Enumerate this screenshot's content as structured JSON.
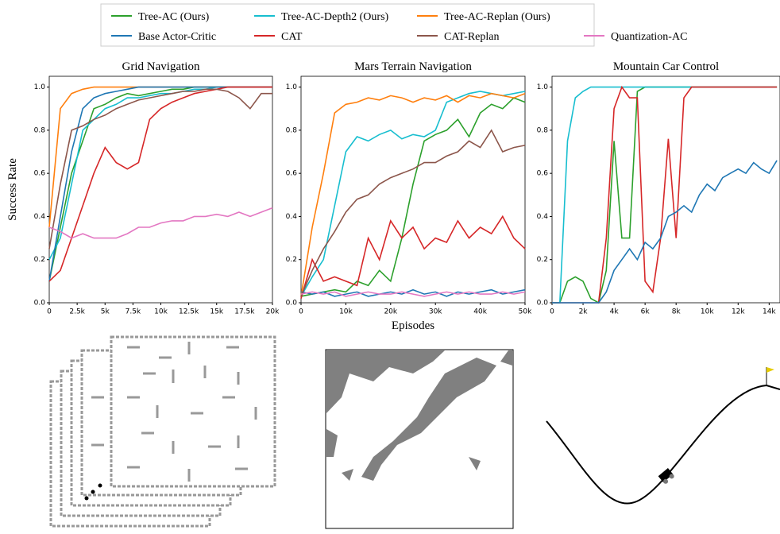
{
  "chart_data": [
    {
      "type": "line",
      "title": "Grid Navigation",
      "ylabel": "Success Rate",
      "xlim": [
        0,
        20000
      ],
      "ylim": [
        0,
        1.05
      ],
      "xticks": [
        0,
        {
          "value": 2500,
          "label": "2.5k"
        },
        {
          "value": 5000,
          "label": "5k"
        },
        {
          "value": 7500,
          "label": "7.5k"
        },
        {
          "value": 10000,
          "label": "10k"
        },
        {
          "value": 12500,
          "label": "12.5k"
        },
        {
          "value": 15000,
          "label": "15k"
        },
        {
          "value": 17500,
          "label": "17.5k"
        },
        {
          "value": 20000,
          "label": "20k"
        }
      ],
      "yticks": [
        {
          "value": 0,
          "label": "0.0"
        },
        {
          "value": 0.2,
          "label": "0.2"
        },
        {
          "value": 0.4,
          "label": "0.4"
        },
        {
          "value": 0.6,
          "label": "0.6"
        },
        {
          "value": 0.8,
          "label": "0.8"
        },
        {
          "value": 1,
          "label": "1.0"
        }
      ],
      "x": [
        0,
        1000,
        2000,
        3000,
        4000,
        5000,
        6000,
        7000,
        8000,
        9000,
        10000,
        11000,
        12000,
        13000,
        14000,
        15000,
        16000,
        17000,
        18000,
        19000,
        20000
      ],
      "series": [
        {
          "name": "Tree-AC (Ours)",
          "color": "#2ca02c",
          "values": [
            0.1,
            0.35,
            0.6,
            0.75,
            0.9,
            0.92,
            0.95,
            0.97,
            0.96,
            0.97,
            0.98,
            0.99,
            0.99,
            1,
            1,
            1,
            1,
            1,
            1,
            1,
            1
          ]
        },
        {
          "name": "Tree-AC-Depth2 (Ours)",
          "color": "#17becf",
          "values": [
            0.2,
            0.3,
            0.55,
            0.8,
            0.85,
            0.9,
            0.92,
            0.95,
            0.95,
            0.96,
            0.97,
            0.97,
            0.98,
            0.99,
            0.99,
            1,
            1,
            1,
            1,
            1,
            1
          ]
        },
        {
          "name": "Tree-AC-Replan (Ours)",
          "color": "#ff7f0e",
          "values": [
            0.35,
            0.9,
            0.97,
            0.99,
            1,
            1,
            1,
            1,
            1,
            1,
            1,
            1,
            1,
            1,
            1,
            1,
            1,
            1,
            1,
            1,
            1
          ]
        },
        {
          "name": "Base Actor-Critic",
          "color": "#1f77b4",
          "values": [
            0.1,
            0.4,
            0.7,
            0.9,
            0.95,
            0.97,
            0.98,
            0.99,
            1,
            1,
            1,
            1,
            1,
            1,
            1,
            1,
            1,
            1,
            1,
            1,
            1
          ]
        },
        {
          "name": "CAT",
          "color": "#d62728",
          "values": [
            0.1,
            0.15,
            0.3,
            0.45,
            0.6,
            0.72,
            0.65,
            0.62,
            0.65,
            0.85,
            0.9,
            0.93,
            0.95,
            0.97,
            0.98,
            0.99,
            1,
            1,
            1,
            1,
            1
          ]
        },
        {
          "name": "CAT-Replan",
          "color": "#8c564b",
          "values": [
            0.25,
            0.55,
            0.8,
            0.82,
            0.85,
            0.87,
            0.9,
            0.92,
            0.94,
            0.95,
            0.96,
            0.97,
            0.98,
            0.98,
            0.99,
            0.99,
            0.98,
            0.95,
            0.9,
            0.97,
            0.97
          ]
        },
        {
          "name": "Quantization-AC",
          "color": "#e377c2",
          "values": [
            0.35,
            0.33,
            0.3,
            0.32,
            0.3,
            0.3,
            0.3,
            0.32,
            0.35,
            0.35,
            0.37,
            0.38,
            0.38,
            0.4,
            0.4,
            0.41,
            0.4,
            0.42,
            0.4,
            0.42,
            0.44
          ]
        }
      ]
    },
    {
      "type": "line",
      "title": "Mars Terrain Navigation",
      "xlabel": "Episodes",
      "xlim": [
        0,
        50000
      ],
      "ylim": [
        0,
        1.05
      ],
      "xticks": [
        0,
        {
          "value": 10000,
          "label": "10k"
        },
        {
          "value": 20000,
          "label": "20k"
        },
        {
          "value": 30000,
          "label": "30k"
        },
        {
          "value": 40000,
          "label": "40k"
        },
        {
          "value": 50000,
          "label": "50k"
        }
      ],
      "yticks": [
        {
          "value": 0,
          "label": "0.0"
        },
        {
          "value": 0.2,
          "label": "0.2"
        },
        {
          "value": 0.4,
          "label": "0.4"
        },
        {
          "value": 0.6,
          "label": "0.6"
        },
        {
          "value": 0.8,
          "label": "0.8"
        },
        {
          "value": 1,
          "label": "1.0"
        }
      ],
      "x": [
        0,
        2500,
        5000,
        7500,
        10000,
        12500,
        15000,
        17500,
        20000,
        22500,
        25000,
        27500,
        30000,
        32500,
        35000,
        37500,
        40000,
        42500,
        45000,
        47500,
        50000
      ],
      "series": [
        {
          "name": "Tree-AC (Ours)",
          "color": "#2ca02c",
          "values": [
            0.03,
            0.04,
            0.05,
            0.06,
            0.05,
            0.1,
            0.08,
            0.15,
            0.1,
            0.3,
            0.55,
            0.75,
            0.78,
            0.8,
            0.85,
            0.77,
            0.88,
            0.92,
            0.9,
            0.95,
            0.93
          ]
        },
        {
          "name": "Tree-AC-Depth2 (Ours)",
          "color": "#17becf",
          "values": [
            0.03,
            0.12,
            0.2,
            0.45,
            0.7,
            0.77,
            0.75,
            0.78,
            0.8,
            0.76,
            0.78,
            0.77,
            0.8,
            0.93,
            0.95,
            0.97,
            0.98,
            0.97,
            0.96,
            0.97,
            0.98
          ]
        },
        {
          "name": "Tree-AC-Replan (Ours)",
          "color": "#ff7f0e",
          "values": [
            0.03,
            0.35,
            0.6,
            0.88,
            0.92,
            0.93,
            0.95,
            0.94,
            0.96,
            0.95,
            0.93,
            0.95,
            0.94,
            0.96,
            0.93,
            0.96,
            0.95,
            0.97,
            0.96,
            0.95,
            0.97
          ]
        },
        {
          "name": "Base Actor-Critic",
          "color": "#1f77b4",
          "values": [
            0.05,
            0.04,
            0.05,
            0.03,
            0.04,
            0.05,
            0.03,
            0.04,
            0.05,
            0.04,
            0.06,
            0.04,
            0.05,
            0.03,
            0.05,
            0.04,
            0.05,
            0.06,
            0.04,
            0.05,
            0.06
          ]
        },
        {
          "name": "CAT",
          "color": "#d62728",
          "values": [
            0.02,
            0.2,
            0.1,
            0.12,
            0.1,
            0.08,
            0.3,
            0.2,
            0.38,
            0.3,
            0.35,
            0.25,
            0.3,
            0.28,
            0.38,
            0.3,
            0.35,
            0.32,
            0.4,
            0.3,
            0.25
          ]
        },
        {
          "name": "CAT-Replan",
          "color": "#8c564b",
          "values": [
            0.03,
            0.15,
            0.25,
            0.33,
            0.42,
            0.48,
            0.5,
            0.55,
            0.58,
            0.6,
            0.62,
            0.65,
            0.65,
            0.68,
            0.7,
            0.75,
            0.72,
            0.8,
            0.7,
            0.72,
            0.73
          ]
        },
        {
          "name": "Quantization-AC",
          "color": "#e377c2",
          "values": [
            0.04,
            0.05,
            0.04,
            0.05,
            0.03,
            0.04,
            0.05,
            0.04,
            0.04,
            0.05,
            0.04,
            0.03,
            0.04,
            0.05,
            0.04,
            0.05,
            0.04,
            0.04,
            0.05,
            0.04,
            0.05
          ]
        }
      ]
    },
    {
      "type": "line",
      "title": "Mountain Car Control",
      "xlim": [
        0,
        14700
      ],
      "ylim": [
        0,
        1.05
      ],
      "xticks": [
        0,
        {
          "value": 2000,
          "label": "2k"
        },
        {
          "value": 4000,
          "label": "4k"
        },
        {
          "value": 6000,
          "label": "6k"
        },
        {
          "value": 8000,
          "label": "8k"
        },
        {
          "value": 10000,
          "label": "10k"
        },
        {
          "value": 12000,
          "label": "12k"
        },
        {
          "value": 14000,
          "label": "14k"
        }
      ],
      "yticks": [
        {
          "value": 0,
          "label": "0.0"
        },
        {
          "value": 0.2,
          "label": "0.2"
        },
        {
          "value": 0.4,
          "label": "0.4"
        },
        {
          "value": 0.6,
          "label": "0.6"
        },
        {
          "value": 0.8,
          "label": "0.8"
        },
        {
          "value": 1,
          "label": "1.0"
        }
      ],
      "x": [
        0,
        500,
        1000,
        1500,
        2000,
        2500,
        3000,
        3500,
        4000,
        4500,
        5000,
        5500,
        6000,
        6500,
        7000,
        7500,
        8000,
        8500,
        9000,
        9500,
        10000,
        10500,
        11000,
        11500,
        12000,
        12500,
        13000,
        13500,
        14000,
        14500
      ],
      "series": [
        {
          "name": "Tree-AC (Ours)",
          "color": "#2ca02c",
          "values": [
            0,
            0,
            0.1,
            0.12,
            0.1,
            0.02,
            0,
            0.15,
            0.75,
            0.3,
            0.3,
            0.98,
            1,
            1,
            1,
            1,
            1,
            1,
            1,
            1,
            1,
            1,
            1,
            1,
            1,
            1,
            1,
            1,
            1,
            1
          ]
        },
        {
          "name": "Tree-AC-Depth2 (Ours)",
          "color": "#17becf",
          "values": [
            0,
            0,
            0.75,
            0.95,
            0.98,
            1,
            1,
            1,
            1,
            1,
            1,
            1,
            1,
            1,
            1,
            1,
            1,
            1,
            1,
            1,
            1,
            1,
            1,
            1,
            1,
            1,
            1,
            1,
            1,
            1
          ]
        },
        {
          "name": "CAT",
          "color": "#d62728",
          "values": [
            0,
            0,
            0,
            0,
            0,
            0,
            0,
            0.3,
            0.9,
            1,
            0.95,
            0.95,
            0.1,
            0.05,
            0.3,
            0.76,
            0.3,
            0.95,
            1,
            1,
            1,
            1,
            1,
            1,
            1,
            1,
            1,
            1,
            1,
            1
          ]
        },
        {
          "name": "Base Actor-Critic",
          "color": "#1f77b4",
          "values": [
            0,
            0,
            0,
            0,
            0,
            0,
            0,
            0.05,
            0.15,
            0.2,
            0.25,
            0.2,
            0.28,
            0.25,
            0.3,
            0.4,
            0.42,
            0.45,
            0.42,
            0.5,
            0.55,
            0.52,
            0.58,
            0.6,
            0.62,
            0.6,
            0.65,
            0.62,
            0.6,
            0.66
          ]
        }
      ]
    }
  ]
}
